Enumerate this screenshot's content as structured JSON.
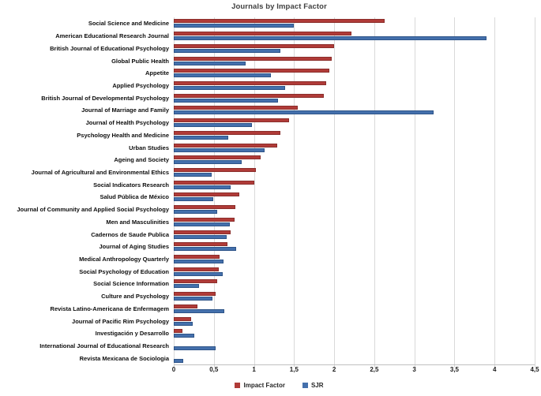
{
  "chart_data": {
    "type": "bar",
    "orientation": "horizontal",
    "title": "Journals by Impact Factor",
    "categories": [
      "Social Science and Medicine",
      "American Educational Research Journal",
      "British Journal of Educational Psychology",
      "Global Public Health",
      "Appetite",
      "Applied Psychology",
      "British Journal of Developmental Psychology",
      "Journal of Marriage and Family",
      "Journal of Health Psychology",
      "Psychology Health and Medicine",
      "Urban Studies",
      "Ageing and Society",
      "Journal of Agricultural and Environmental Ethics",
      "Social Indicators Research",
      "Salud Pública de México",
      "Journal of Community and Applied Social Psychology",
      "Men and Masculinities",
      "Cadernos de Saude Publica",
      "Journal of Aging Studies",
      "Medical Anthropology Quarterly",
      "Social Psychology of Education",
      "Social Science Information",
      "Culture and Psychology",
      "Revista Latino-Americana de Enfermagem",
      "Journal of Pacific Rim Psychology",
      "Investigación y Desarrollo",
      "International Journal of Educational Research",
      "Revista Mexicana de Sociologia"
    ],
    "series": [
      {
        "name": "Impact Factor",
        "color": "#b03b38",
        "border_color": "#8b2e2b",
        "values": [
          2.63,
          2.22,
          2.0,
          1.97,
          1.94,
          1.9,
          1.87,
          1.55,
          1.44,
          1.33,
          1.29,
          1.08,
          1.02,
          1.0,
          0.82,
          0.77,
          0.76,
          0.71,
          0.67,
          0.57,
          0.56,
          0.54,
          0.52,
          0.3,
          0.22,
          0.11,
          0,
          0
        ]
      },
      {
        "name": "SJR",
        "color": "#4470ac",
        "border_color": "#2e5488",
        "values": [
          1.5,
          3.9,
          1.33,
          0.9,
          1.21,
          1.39,
          1.3,
          3.24,
          0.97,
          0.68,
          1.13,
          0.85,
          0.47,
          0.71,
          0.49,
          0.54,
          0.7,
          0.66,
          0.78,
          0.62,
          0.61,
          0.32,
          0.48,
          0.63,
          0.24,
          0.26,
          0.52,
          0.12
        ]
      }
    ],
    "xlim": [
      0,
      4.5
    ],
    "x_ticks": [
      0,
      0.5,
      1,
      1.5,
      2,
      2.5,
      3,
      3.5,
      4,
      4.5
    ],
    "x_tick_labels": [
      "0",
      "0,5",
      "1",
      "1,5",
      "2",
      "2,5",
      "3",
      "3,5",
      "4",
      "4,5"
    ],
    "grid": true,
    "gridline_color": "#d9d9d9",
    "legend_position": "bottom"
  }
}
